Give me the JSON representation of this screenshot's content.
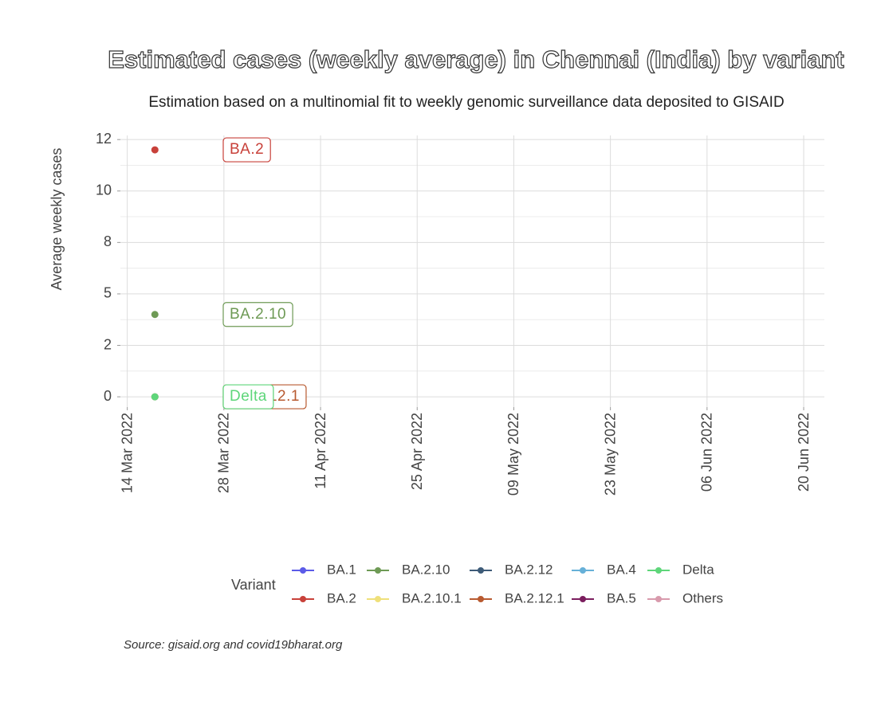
{
  "chart_data": {
    "type": "scatter",
    "title": "Estimated cases (weekly average) in Chennai (India) by variant",
    "subtitle": "Estimation based on a multinomial fit to weekly genomic surveillance data deposited to GISAID",
    "y_label": "Average weekly cases",
    "legend_title": "Variant",
    "caption": "Source: gisaid.org and covid19bharat.org",
    "x": [
      "2022-03-18"
    ],
    "xlim": [
      "2022-03-13",
      "2022-06-23"
    ],
    "xticks": [
      {
        "value": "2022-03-14",
        "label": "14 Mar 2022"
      },
      {
        "value": "2022-03-28",
        "label": "28 Mar 2022"
      },
      {
        "value": "2022-04-11",
        "label": "11 Apr 2022"
      },
      {
        "value": "2022-04-25",
        "label": "25 Apr 2022"
      },
      {
        "value": "2022-05-09",
        "label": "09 May 2022"
      },
      {
        "value": "2022-05-23",
        "label": "23 May 2022"
      },
      {
        "value": "2022-06-06",
        "label": "06 Jun 2022"
      },
      {
        "value": "2022-06-20",
        "label": "20 Jun 2022"
      }
    ],
    "ylim": [
      -0.5,
      12.7
    ],
    "yticks": [
      0,
      {
        "value": 2.5,
        "label": "2"
      },
      5,
      {
        "value": 7.5,
        "label": "8"
      },
      10,
      {
        "value": 12.5,
        "label": "12"
      }
    ],
    "y_minor_ticks": [
      1.25,
      3.75,
      6.25,
      8.75,
      11.25
    ],
    "grid": true,
    "legend_position": "bottom",
    "series": [
      {
        "name": "BA.1",
        "color": "#5b5be8",
        "values": [
          null
        ]
      },
      {
        "name": "BA.2",
        "color": "#c8413a",
        "values": [
          12.0
        ]
      },
      {
        "name": "BA.2.10",
        "color": "#6e9a55",
        "values": [
          4.0
        ]
      },
      {
        "name": "BA.2.10.1",
        "color": "#efe07a",
        "values": [
          null
        ]
      },
      {
        "name": "BA.2.12",
        "color": "#3d5b78",
        "values": [
          null
        ]
      },
      {
        "name": "BA.2.12.1",
        "color": "#b85a30",
        "values": [
          0
        ]
      },
      {
        "name": "BA.4",
        "color": "#66b0d8",
        "values": [
          null
        ]
      },
      {
        "name": "BA.5",
        "color": "#7b1e5e",
        "values": [
          null
        ]
      },
      {
        "name": "Delta",
        "color": "#5ed67a",
        "values": [
          0
        ]
      },
      {
        "name": "Others",
        "color": "#d89aac",
        "values": [
          null
        ]
      }
    ]
  }
}
